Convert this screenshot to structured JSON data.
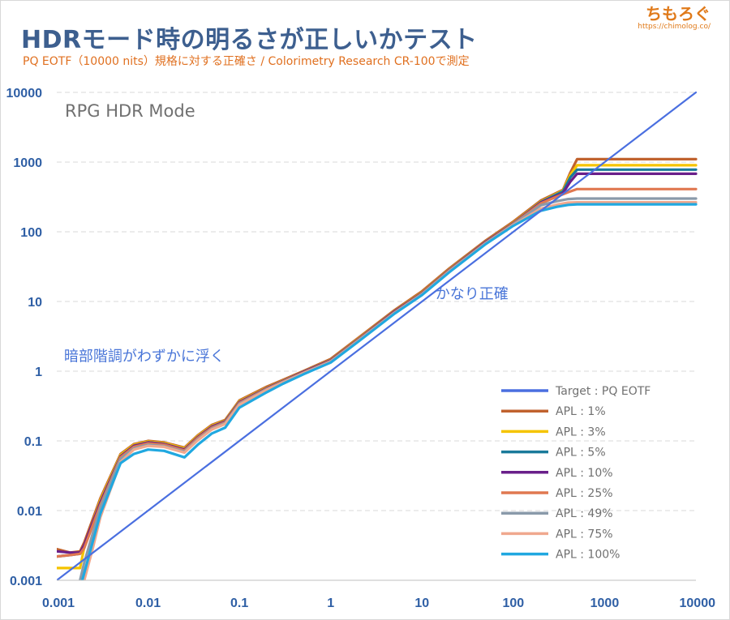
{
  "header": {
    "title": "HDRモード時の明るさが正しいかテスト",
    "subtitle": "PQ EOTF（10000 nits）規格に対する正確さ / Colorimetry Research CR-100で測定",
    "brand_name": "ちもろぐ",
    "brand_url": "https://chimolog.co/"
  },
  "chart_data": {
    "type": "line",
    "x_scale": "log",
    "y_scale": "log",
    "xlim": [
      0.001,
      10000
    ],
    "ylim": [
      0.001,
      10000
    ],
    "x_ticks": [
      "0.001",
      "0.01",
      "0.1",
      "1",
      "10",
      "100",
      "1000",
      "10000"
    ],
    "y_ticks": [
      "0.001",
      "0.01",
      "0.1",
      "1",
      "10",
      "100",
      "1000",
      "10000"
    ],
    "grid": "horizontal dashed",
    "legend_position": "bottom-right",
    "mode_label": "RPG HDR Mode",
    "annotations": [
      {
        "text": "暗部階調がわずかに浮く",
        "x": 0.0012,
        "y": 1.4
      },
      {
        "text": "かなり正確",
        "x": 14,
        "y": 11
      }
    ],
    "series": [
      {
        "name": "Target : PQ EOTF",
        "color": "#4a6fe0",
        "x": [
          0.001,
          10000
        ],
        "y": [
          0.001,
          10000
        ]
      },
      {
        "name": "APL : 1%",
        "color": "#c0622e",
        "x": [
          0.001,
          0.0014,
          0.0018,
          0.002,
          0.003,
          0.005,
          0.007,
          0.01,
          0.015,
          0.025,
          0.035,
          0.05,
          0.07,
          0.1,
          0.2,
          0.3,
          0.5,
          1,
          2,
          5,
          10,
          20,
          50,
          100,
          200,
          350,
          420,
          500,
          1000,
          10000
        ],
        "y": [
          0.0028,
          0.0025,
          0.0026,
          0.0035,
          0.015,
          0.065,
          0.09,
          0.1,
          0.095,
          0.08,
          0.12,
          0.17,
          0.2,
          0.38,
          0.6,
          0.75,
          1.0,
          1.5,
          3,
          7.5,
          14,
          30,
          75,
          140,
          280,
          400,
          700,
          1100,
          1100,
          1100
        ]
      },
      {
        "name": "APL : 3%",
        "color": "#f5c400",
        "x": [
          0.001,
          0.0014,
          0.0018,
          0.002,
          0.003,
          0.005,
          0.007,
          0.01,
          0.015,
          0.025,
          0.035,
          0.05,
          0.07,
          0.1,
          0.2,
          0.3,
          0.5,
          1,
          2,
          5,
          10,
          20,
          50,
          100,
          200,
          350,
          420,
          500,
          1000,
          10000
        ],
        "y": [
          0.0015,
          0.0015,
          0.0015,
          0.003,
          0.014,
          0.063,
          0.088,
          0.098,
          0.093,
          0.078,
          0.117,
          0.165,
          0.195,
          0.37,
          0.58,
          0.73,
          0.98,
          1.45,
          2.9,
          7.3,
          13.5,
          29,
          73,
          135,
          270,
          390,
          650,
          900,
          900,
          900
        ]
      },
      {
        "name": "APL : 5%",
        "color": "#1a7a9a",
        "x": [
          0.001,
          0.0014,
          0.0018,
          0.002,
          0.003,
          0.005,
          0.007,
          0.01,
          0.015,
          0.025,
          0.035,
          0.05,
          0.07,
          0.1,
          0.2,
          0.3,
          0.5,
          1,
          2,
          5,
          10,
          20,
          50,
          100,
          200,
          350,
          420,
          500,
          1000,
          10000
        ],
        "y": [
          0.0022,
          0.0023,
          0.0024,
          0.003,
          0.013,
          0.06,
          0.085,
          0.095,
          0.09,
          0.075,
          0.113,
          0.16,
          0.19,
          0.36,
          0.57,
          0.72,
          0.97,
          1.43,
          2.85,
          7.2,
          13.2,
          28.5,
          72,
          132,
          265,
          380,
          600,
          780,
          780,
          780
        ]
      },
      {
        "name": "APL : 10%",
        "color": "#6a1f8a",
        "x": [
          0.001,
          0.0014,
          0.0018,
          0.002,
          0.003,
          0.005,
          0.007,
          0.01,
          0.015,
          0.025,
          0.035,
          0.05,
          0.07,
          0.1,
          0.2,
          0.3,
          0.5,
          1,
          2,
          5,
          10,
          20,
          50,
          100,
          200,
          350,
          420,
          500,
          1000,
          10000
        ],
        "y": [
          0.0026,
          0.0025,
          0.0025,
          0.0032,
          0.013,
          0.06,
          0.085,
          0.095,
          0.09,
          0.075,
          0.113,
          0.16,
          0.19,
          0.36,
          0.57,
          0.72,
          0.97,
          1.43,
          2.85,
          7.2,
          13.2,
          28.5,
          72,
          132,
          262,
          360,
          520,
          680,
          680,
          680
        ]
      },
      {
        "name": "APL : 25%",
        "color": "#e07850",
        "x": [
          0.001,
          0.0014,
          0.0018,
          0.002,
          0.003,
          0.005,
          0.007,
          0.01,
          0.015,
          0.025,
          0.035,
          0.05,
          0.07,
          0.1,
          0.2,
          0.3,
          0.5,
          1,
          2,
          5,
          10,
          20,
          50,
          100,
          200,
          300,
          400,
          500,
          1000,
          10000
        ],
        "y": [
          0.0022,
          0.0023,
          0.0024,
          0.0029,
          0.012,
          0.058,
          0.082,
          0.092,
          0.088,
          0.073,
          0.11,
          0.155,
          0.185,
          0.35,
          0.56,
          0.71,
          0.95,
          1.4,
          2.8,
          7.0,
          13,
          28,
          70,
          130,
          255,
          320,
          370,
          410,
          410,
          410
        ]
      },
      {
        "name": "APL : 49%",
        "color": "#8a9aaa",
        "x": [
          0.0018,
          0.002,
          0.003,
          0.005,
          0.007,
          0.01,
          0.015,
          0.025,
          0.035,
          0.05,
          0.07,
          0.1,
          0.2,
          0.3,
          0.5,
          1,
          2,
          5,
          10,
          20,
          50,
          100,
          200,
          300,
          400,
          500,
          1000,
          10000
        ],
        "y": [
          0.001,
          0.0018,
          0.011,
          0.055,
          0.078,
          0.088,
          0.084,
          0.07,
          0.105,
          0.15,
          0.18,
          0.34,
          0.55,
          0.7,
          0.94,
          1.38,
          2.75,
          6.9,
          12.8,
          27.5,
          69,
          128,
          240,
          275,
          295,
          300,
          300,
          300
        ]
      },
      {
        "name": "APL : 75%",
        "color": "#f0a88e",
        "x": [
          0.002,
          0.0025,
          0.003,
          0.005,
          0.007,
          0.01,
          0.015,
          0.025,
          0.035,
          0.05,
          0.07,
          0.1,
          0.2,
          0.3,
          0.5,
          1,
          2,
          5,
          10,
          20,
          50,
          100,
          200,
          300,
          400,
          500,
          1000,
          10000
        ],
        "y": [
          0.001,
          0.003,
          0.008,
          0.05,
          0.075,
          0.085,
          0.082,
          0.068,
          0.102,
          0.146,
          0.175,
          0.33,
          0.54,
          0.69,
          0.93,
          1.36,
          2.7,
          6.8,
          12.6,
          27,
          68,
          125,
          215,
          245,
          262,
          265,
          265,
          265
        ]
      },
      {
        "name": "APL : 100%",
        "color": "#20a8e0",
        "x": [
          0.0019,
          0.0022,
          0.003,
          0.005,
          0.007,
          0.01,
          0.015,
          0.025,
          0.035,
          0.05,
          0.07,
          0.1,
          0.2,
          0.3,
          0.5,
          1,
          2,
          5,
          10,
          20,
          50,
          100,
          200,
          300,
          400,
          500,
          1000,
          10000
        ],
        "y": [
          0.001,
          0.002,
          0.009,
          0.048,
          0.065,
          0.075,
          0.072,
          0.058,
          0.088,
          0.128,
          0.155,
          0.3,
          0.5,
          0.66,
          0.9,
          1.33,
          2.65,
          6.7,
          12.4,
          26.5,
          67,
          122,
          200,
          228,
          243,
          248,
          248,
          248
        ]
      }
    ]
  }
}
